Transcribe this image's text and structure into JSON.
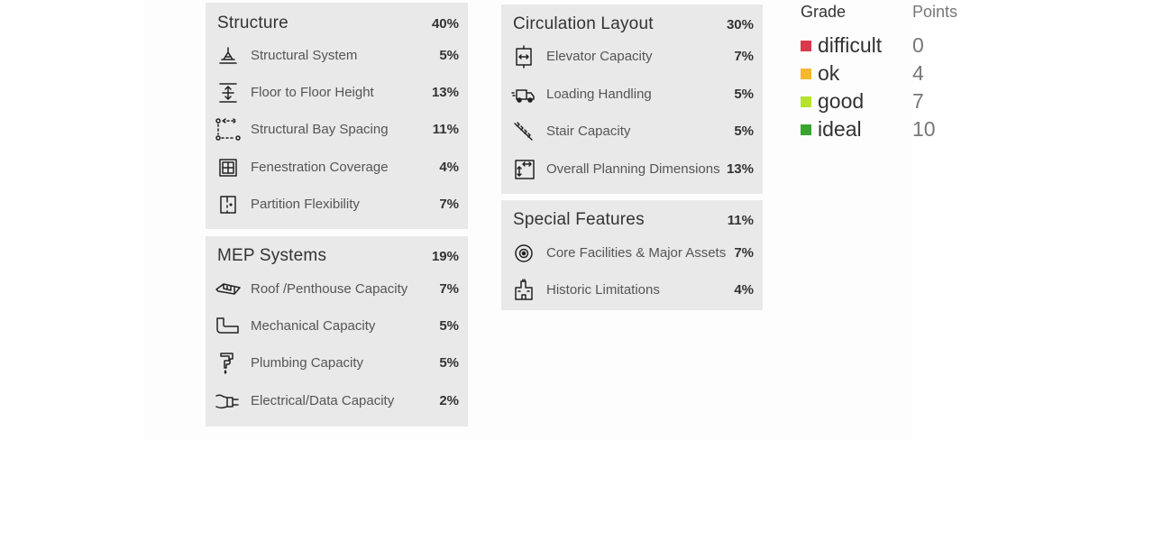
{
  "structure": {
    "title": "Structure",
    "pct": "40%",
    "items": [
      {
        "label": "Structural System",
        "pct": "5%",
        "icon": "structural-system-icon"
      },
      {
        "label": "Floor to Floor Height",
        "pct": "13%",
        "icon": "floor-height-icon"
      },
      {
        "label": "Structural Bay Spacing",
        "pct": "11%",
        "icon": "bay-spacing-icon"
      },
      {
        "label": "Fenestration Coverage",
        "pct": "4%",
        "icon": "window-icon"
      },
      {
        "label": "Partition Flexibility",
        "pct": "7%",
        "icon": "partition-icon"
      }
    ]
  },
  "mep": {
    "title": "MEP Systems",
    "pct": "19%",
    "items": [
      {
        "label": "Roof /Penthouse Capacity",
        "pct": "7%",
        "icon": "roof-icon"
      },
      {
        "label": "Mechanical Capacity",
        "pct": "5%",
        "icon": "duct-icon"
      },
      {
        "label": "Plumbing Capacity",
        "pct": "5%",
        "icon": "faucet-icon"
      },
      {
        "label": "Electrical/Data Capacity",
        "pct": "2%",
        "icon": "plug-icon"
      }
    ]
  },
  "circulation": {
    "title": "Circulation Layout",
    "pct": "30%",
    "items": [
      {
        "label": "Elevator Capacity",
        "pct": "7%",
        "icon": "elevator-icon"
      },
      {
        "label": "Loading Handling",
        "pct": "5%",
        "icon": "truck-icon"
      },
      {
        "label": "Stair Capacity",
        "pct": "5%",
        "icon": "stairs-icon"
      },
      {
        "label": "Overall Planning Dimensions",
        "pct": "13%",
        "icon": "dimensions-icon"
      }
    ]
  },
  "special": {
    "title": "Special Features",
    "pct": "11%",
    "items": [
      {
        "label": "Core Facilities & Major Assets",
        "pct": "7%",
        "icon": "target-icon"
      },
      {
        "label": "Historic Limitations",
        "pct": "4%",
        "icon": "historic-building-icon"
      }
    ]
  },
  "legend": {
    "grade_header": "Grade",
    "points_header": "Points",
    "rows": [
      {
        "name": "difficult",
        "points": "0",
        "color": "#d93a4c"
      },
      {
        "name": "ok",
        "points": "4",
        "color": "#f5b731"
      },
      {
        "name": "good",
        "points": "7",
        "color": "#b7e32a"
      },
      {
        "name": "ideal",
        "points": "10",
        "color": "#3aa52f"
      }
    ]
  }
}
